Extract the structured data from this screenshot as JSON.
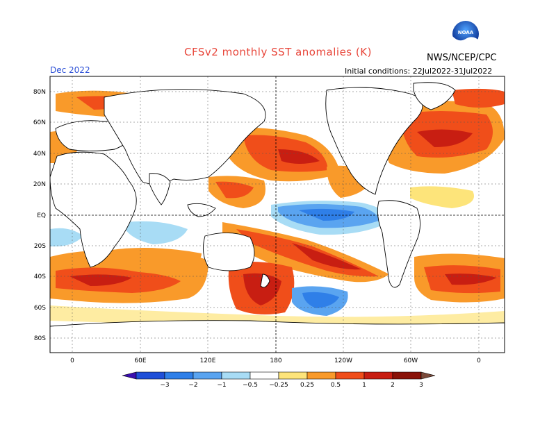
{
  "header": {
    "title": "CFSv2 monthly SST anomalies (K)",
    "agency": "NWS/NCEP/CPC",
    "valid_month": "Dec 2022",
    "initial_conditions": "Initial conditions: 22Jul2022-31Jul2022",
    "logo_text": "NOAA"
  },
  "axes": {
    "lat_labels": [
      "80N",
      "60N",
      "40N",
      "20N",
      "EQ",
      "20S",
      "40S",
      "60S",
      "80S"
    ],
    "lon_labels": [
      "0",
      "60E",
      "120E",
      "180",
      "120W",
      "60W",
      "0"
    ]
  },
  "colorbar": {
    "ticks": [
      "−3",
      "−2",
      "−1",
      "−0.5",
      "−0.25",
      "0.25",
      "0.5",
      "1",
      "2",
      "3"
    ],
    "colors": [
      "#3b0fb0",
      "#1f4fd8",
      "#2f7fe8",
      "#5aa4f0",
      "#a8dcf5",
      "#ffffff",
      "#fde47a",
      "#f99a2a",
      "#f04e1a",
      "#c81e12",
      "#8a1208",
      "#7a4a3a"
    ]
  },
  "palette": {
    "land": "#ffffff",
    "coast": "#000000",
    "grid": "#555555"
  }
}
